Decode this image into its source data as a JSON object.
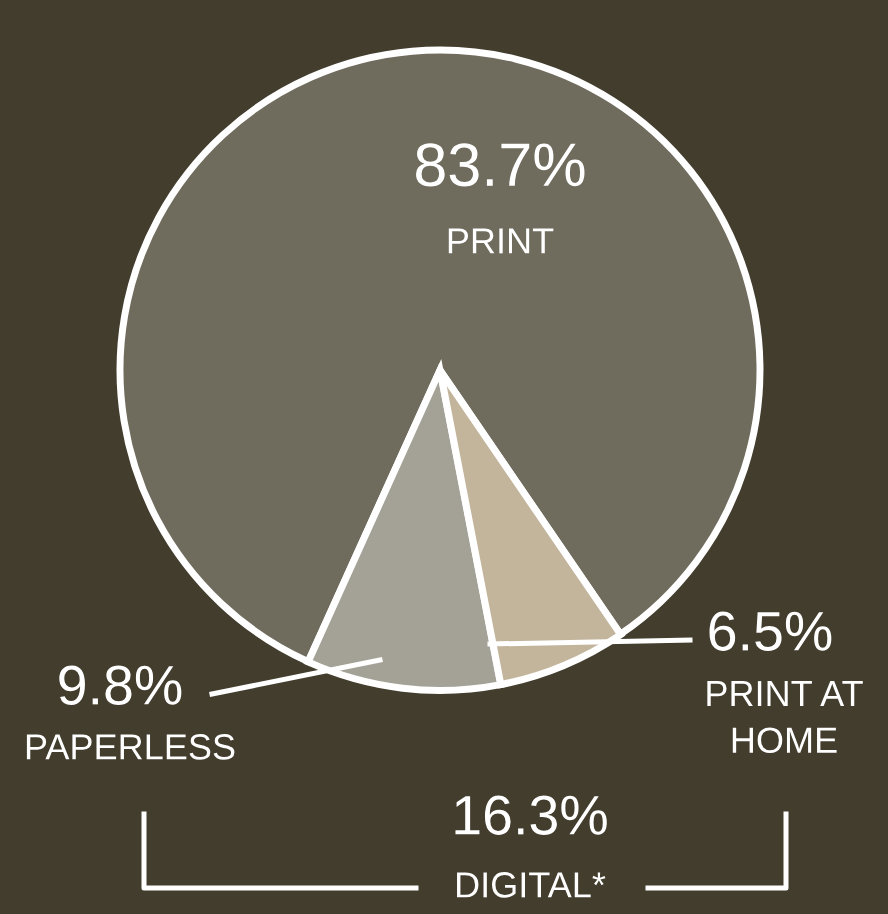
{
  "chart_data": {
    "type": "pie",
    "categories": [
      "PRINT",
      "PAPERLESS",
      "PRINT AT\nHOME"
    ],
    "values": [
      83.7,
      9.8,
      6.5
    ],
    "colors": [
      "#6f6b5d",
      "#a4a297",
      "#c3b59c"
    ],
    "value_labels": [
      "83.7%",
      "9.8%",
      "6.5%"
    ],
    "annotations": [
      "16.3%",
      "DIGITAL*"
    ],
    "legend": false
  }
}
